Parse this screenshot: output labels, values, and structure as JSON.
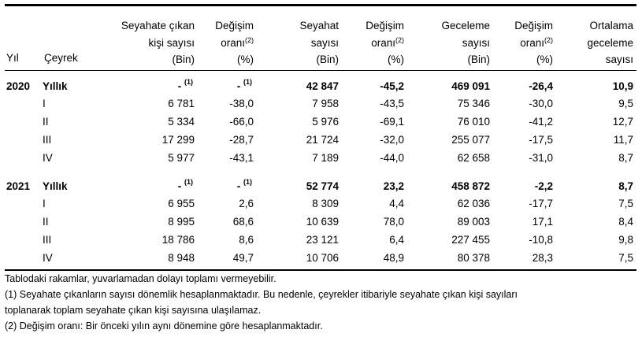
{
  "headers": {
    "year": "Yıl",
    "quarter": "Çeyrek",
    "c2": [
      "Seyahate çıkan",
      "kişi sayısı",
      "(Bin)"
    ],
    "c3": [
      "Değişim",
      "oranı",
      "(%)"
    ],
    "c4": [
      "Seyahat",
      "sayısı",
      "(Bin)"
    ],
    "c5": [
      "Değişim",
      "oranı",
      "(%)"
    ],
    "c6": [
      "Geceleme",
      "sayısı",
      "(Bin)"
    ],
    "c7": [
      "Değişim",
      "oranı",
      "(%)"
    ],
    "c8": [
      "Ortalama",
      "geceleme",
      "sayısı"
    ],
    "sup2": "(2)",
    "sup1": "(1)"
  },
  "rows": [
    {
      "year": "2020",
      "q": "Yıllık",
      "v": [
        "-",
        "-",
        "42 847",
        "-45,2",
        "469 091",
        "-26,4",
        "10,9"
      ],
      "bold": true
    },
    {
      "year": "",
      "q": "I",
      "v": [
        "6 781",
        "-38,0",
        "7 958",
        "-43,5",
        "75 346",
        "-30,0",
        "9,5"
      ]
    },
    {
      "year": "",
      "q": "II",
      "v": [
        "5 334",
        "-66,0",
        "5 976",
        "-69,1",
        "76 010",
        "-41,2",
        "12,7"
      ]
    },
    {
      "year": "",
      "q": "III",
      "v": [
        "17 299",
        "-28,7",
        "21 724",
        "-32,0",
        "255 077",
        "-17,5",
        "11,7"
      ]
    },
    {
      "year": "",
      "q": "IV",
      "v": [
        "5 977",
        "-43,1",
        "7 189",
        "-44,0",
        "62 658",
        "-31,0",
        "8,7"
      ]
    },
    {
      "year": "2021",
      "q": "Yıllık",
      "v": [
        "-",
        "-",
        "52 774",
        "23,2",
        "458 872",
        "-2,2",
        "8,7"
      ],
      "bold": true
    },
    {
      "year": "",
      "q": "I",
      "v": [
        "6 955",
        "2,6",
        "8 309",
        "4,4",
        "62 036",
        "-17,7",
        "7,5"
      ]
    },
    {
      "year": "",
      "q": "II",
      "v": [
        "8 995",
        "68,6",
        "10 639",
        "78,0",
        "89 003",
        "17,1",
        "8,4"
      ]
    },
    {
      "year": "",
      "q": "III",
      "v": [
        "18 786",
        "8,6",
        "23 121",
        "6,4",
        "227 455",
        "-10,8",
        "9,8"
      ]
    },
    {
      "year": "",
      "q": "IV",
      "v": [
        "8 948",
        "49,7",
        "10 706",
        "48,9",
        "80 378",
        "28,3",
        "7,5"
      ]
    }
  ],
  "notes": [
    "Tablodaki rakamlar, yuvarlamadan dolayı toplamı vermeyebilir.",
    "(1) Seyahate çıkanların sayısı dönemlik hesaplanmaktadır. Bu nedenle, çeyrekler itibariyle seyahate çıkan kişi sayıları",
    "toplanarak toplam seyahate çıkan kişi sayısına ulaşılamaz.",
    "(2) Değişim oranı: Bir önceki yılın aynı dönemine göre hesaplanmaktadır."
  ]
}
